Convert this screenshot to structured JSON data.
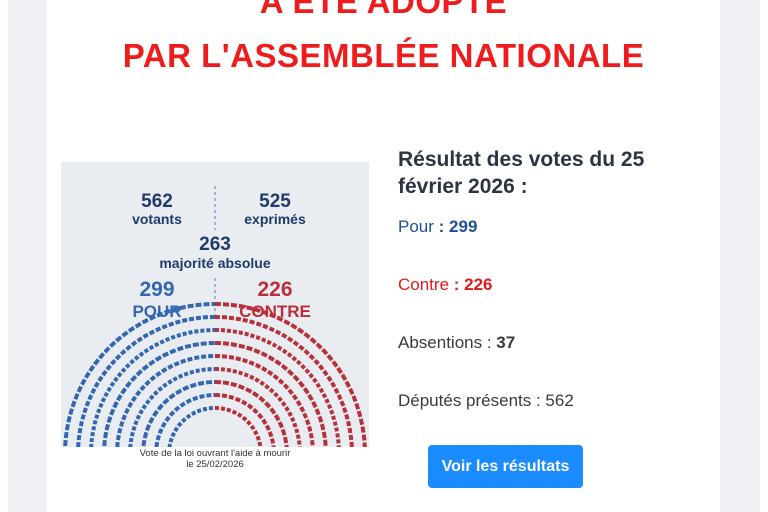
{
  "headline": {
    "line1": "A ÉTÉ ADOPTÉ",
    "line2": "PAR L'ASSEMBLÉE NATIONALE"
  },
  "figure": {
    "votants_value": "562",
    "votants_label": "votants",
    "exprimes_value": "525",
    "exprimes_label": "exprimés",
    "majorite_value": "263",
    "majorite_label": "majorité absolue",
    "pour_value": "299",
    "pour_label": "POUR",
    "contre_value": "226",
    "contre_label": "CONTRE",
    "caption_line1": "Vote de la loi ouvrant l'aide à mourir",
    "caption_line2": "le 25/02/2026",
    "colors": {
      "pour": "#3566b0",
      "contre": "#b8303a",
      "absent": "#d0d4da"
    }
  },
  "results": {
    "title": "Résultat des votes du 25 février 2026 :",
    "pour_label": "Pour",
    "pour_sep": " : ",
    "pour_value": "299",
    "contre_label": "Contre",
    "contre_sep": " : ",
    "contre_value": "226",
    "abstentions_label": "Absentions : ",
    "abstentions_value": "37",
    "presents_label": "Députés présents : ",
    "presents_value": "562"
  },
  "button": {
    "label": "Voir les résultats",
    "color": "#1a8cff"
  }
}
